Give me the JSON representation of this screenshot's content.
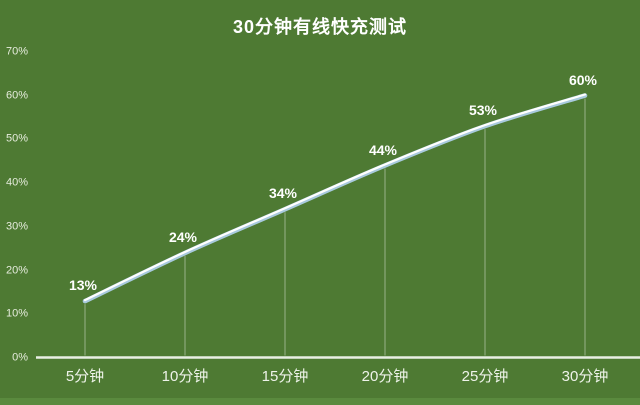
{
  "chart_data": {
    "type": "line",
    "title": "30分钟有线快充测试",
    "categories": [
      "5分钟",
      "10分钟",
      "15分钟",
      "20分钟",
      "25分钟",
      "30分钟"
    ],
    "values": [
      13,
      24,
      34,
      44,
      53,
      60
    ],
    "data_labels": [
      "13%",
      "24%",
      "34%",
      "44%",
      "53%",
      "60%"
    ],
    "yticks": [
      "0%",
      "10%",
      "20%",
      "30%",
      "40%",
      "50%",
      "60%",
      "70%"
    ],
    "ytick_values": [
      0,
      10,
      20,
      30,
      40,
      50,
      60,
      70
    ],
    "xlabel": "",
    "ylabel": "",
    "ylim": [
      0,
      70
    ],
    "grid": false,
    "legend": "none",
    "colors": {
      "background": "#4e7a33",
      "bottom_strip": "#5a8a3e",
      "line_highlight": "#ffffff",
      "line_shadow": "#a9cade",
      "axis_line": "#e9efe4",
      "title_text": "#ffffff",
      "tick_text": "#e6ecdd",
      "data_label_text": "#ffffff"
    }
  }
}
